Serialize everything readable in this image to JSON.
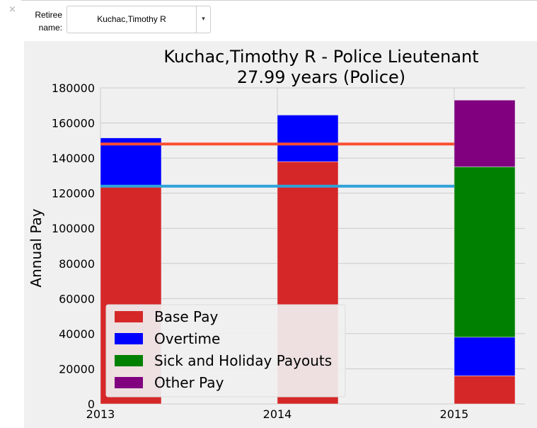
{
  "form": {
    "label": "Retiree\nname:",
    "selected": "Kuchac,Timothy R",
    "close_glyph": "×",
    "caret_glyph": "▾"
  },
  "chart_data": {
    "type": "bar",
    "stacked": true,
    "title": "Kuchac,Timothy R - Police Lieutenant",
    "subtitle": "27.99 years (Police)",
    "xlabel": "",
    "ylabel": "Annual Pay",
    "categories": [
      "2013",
      "2014",
      "2015"
    ],
    "ylim": [
      0,
      180000
    ],
    "yticks": [
      0,
      20000,
      40000,
      60000,
      80000,
      100000,
      120000,
      140000,
      160000,
      180000
    ],
    "grid": true,
    "series": [
      {
        "name": "Base Pay",
        "color": "#d62728",
        "values": [
          124000,
          138000,
          16000
        ]
      },
      {
        "name": "Overtime",
        "color": "#0000ff",
        "values": [
          27500,
          26500,
          22000
        ]
      },
      {
        "name": "Sick and Holiday Payouts",
        "color": "#008000",
        "values": [
          0,
          0,
          97000
        ]
      },
      {
        "name": "Other Pay",
        "color": "#800080",
        "values": [
          0,
          0,
          38000
        ]
      }
    ],
    "reference_lines": [
      {
        "value": 148000,
        "color": "#fc4f30"
      },
      {
        "value": 124000,
        "color": "#30a2da"
      }
    ],
    "legend": {
      "placement": "lower-left"
    }
  }
}
